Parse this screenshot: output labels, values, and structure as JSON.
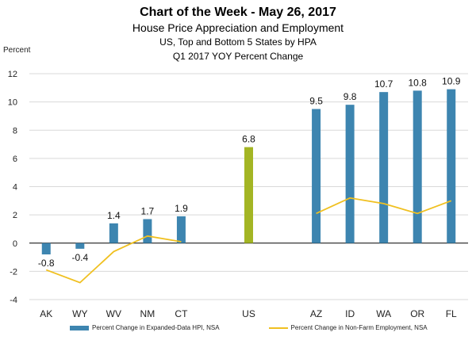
{
  "chart_data": {
    "type": "bar",
    "title": "Chart of the Week - May 26, 2017",
    "subtitle": "House Price Appreciation and Employment",
    "subtitle2": "US, Top and Bottom 5 States by HPA",
    "subtitle3": "Q1 2017 YOY Percent Change",
    "ylabel": "Percent",
    "ylim": [
      -4,
      12
    ],
    "yticks": [
      "-4",
      "-2",
      "0",
      "2",
      "4",
      "6",
      "8",
      "10",
      "12"
    ],
    "categories": [
      "AK",
      "WY",
      "WV",
      "NM",
      "CT",
      "",
      "US",
      "",
      "AZ",
      "ID",
      "WA",
      "OR",
      "FL"
    ],
    "series": [
      {
        "name": "Percent Change in Expanded-Data HPI, NSA",
        "kind": "bar",
        "values": [
          -0.8,
          -0.4,
          1.4,
          1.7,
          1.9,
          null,
          6.8,
          null,
          9.5,
          9.8,
          10.7,
          10.8,
          10.9
        ],
        "labels": [
          "-0.8",
          "-0.4",
          "1.4",
          "1.7",
          "1.9",
          "",
          "6.8",
          "",
          "9.5",
          "9.8",
          "10.7",
          "10.8",
          "10.9"
        ]
      },
      {
        "name": "Percent Change in Non-Farm Employment, NSA",
        "kind": "line",
        "segments": [
          {
            "indices": [
              0,
              1,
              2,
              3,
              4
            ],
            "values": [
              -1.9,
              -2.8,
              -0.6,
              0.5,
              0.1
            ]
          },
          {
            "indices": [
              8,
              9,
              10,
              11,
              12
            ],
            "values": [
              2.1,
              3.2,
              2.8,
              2.1,
              3.0
            ]
          }
        ]
      }
    ]
  },
  "colors": {
    "bar": "#3d85b0",
    "us_bar": "#a3b524",
    "line": "#f0c020",
    "grid": "#d9d9d9",
    "axis": "#000000"
  }
}
